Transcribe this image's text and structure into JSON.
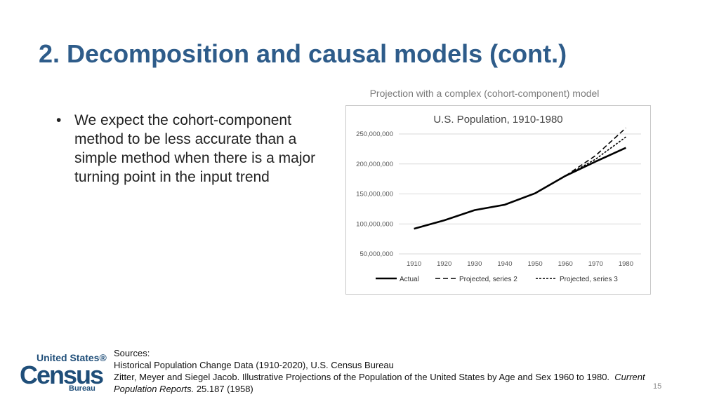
{
  "slide": {
    "title": "2. Decomposition and causal models (cont.)",
    "bullet": "We expect the cohort-component method to be less accurate than a simple method when there is a major turning point in the input trend",
    "chart_caption": "Projection with a complex (cohort-component) model",
    "sources_heading": "Sources:",
    "source_1": "Historical Population Change Data (1910-2020), U.S. Census Bureau",
    "source_2": "Zitter, Meyer and Siegel Jacob. Illustrative Projections of the Population of the United States by Age and Sex 1960 to 1980.",
    "source_2_italic": "Current",
    "source_3_italic": "Population Reports.",
    "source_3": "25.187 (1958)",
    "page_number": "15"
  },
  "logo": {
    "line1": "United States®",
    "line2": "Census",
    "line3": "Bureau",
    "color": "#1f4e79"
  },
  "colors": {
    "title": "#2e5c8a",
    "series": "#000000",
    "grid": "#d9d9d9"
  },
  "chart_data": {
    "type": "line",
    "title": "U.S. Population, 1910-1980",
    "xlabel": "",
    "ylabel": "",
    "x": [
      1910,
      1920,
      1930,
      1940,
      1950,
      1960,
      1970,
      1980
    ],
    "ylim": [
      50000000,
      250000000
    ],
    "yticks": [
      {
        "value": 50000000,
        "label": "50,000,000"
      },
      {
        "value": 100000000,
        "label": "100,000,000"
      },
      {
        "value": 150000000,
        "label": "150,000,000"
      },
      {
        "value": 200000000,
        "label": "200,000,000"
      },
      {
        "value": 250000000,
        "label": "250,000,000"
      }
    ],
    "grid": true,
    "legend_position": "bottom",
    "series": [
      {
        "name": "Actual",
        "dash": "solid",
        "x": [
          1910,
          1920,
          1930,
          1940,
          1950,
          1960,
          1970,
          1980
        ],
        "values": [
          92000000,
          106000000,
          123000000,
          132000000,
          151000000,
          180000000,
          204000000,
          227000000
        ]
      },
      {
        "name": "Projected, series 2",
        "dash": "dashed",
        "x": [
          1960,
          1970,
          1980
        ],
        "values": [
          180000000,
          214000000,
          260000000
        ]
      },
      {
        "name": "Projected, series 3",
        "dash": "dotted",
        "x": [
          1960,
          1970,
          1980
        ],
        "values": [
          180000000,
          208000000,
          245000000
        ]
      }
    ]
  }
}
